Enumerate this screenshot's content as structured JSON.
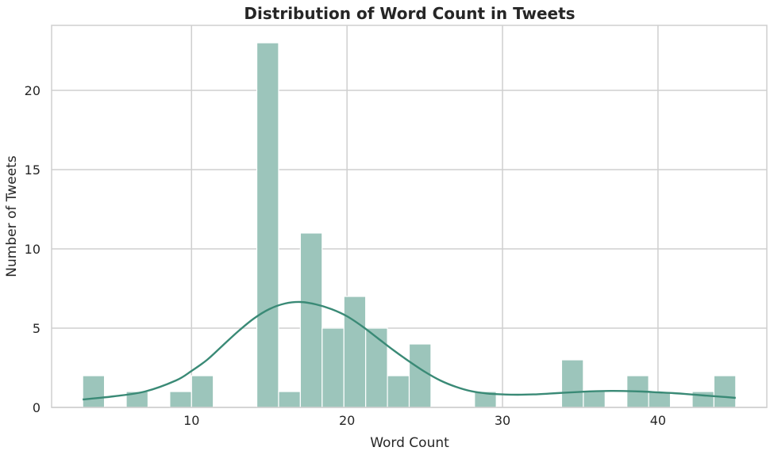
{
  "chart_data": {
    "type": "bar",
    "title": "Distribution of Word Count in Tweets",
    "xlabel": "Word Count",
    "ylabel": "Number of Tweets",
    "xlim": [
      1.0,
      47.0
    ],
    "ylim": [
      0,
      24.1
    ],
    "xticks": [
      10,
      20,
      30,
      40
    ],
    "yticks": [
      0,
      5,
      10,
      15,
      20
    ],
    "grid": true,
    "bin_width": 1.4,
    "bins": [
      {
        "x0": 3.0,
        "count": 2
      },
      {
        "x0": 5.8,
        "count": 1
      },
      {
        "x0": 8.6,
        "count": 1
      },
      {
        "x0": 10.0,
        "count": 2
      },
      {
        "x0": 14.2,
        "count": 23
      },
      {
        "x0": 15.6,
        "count": 1
      },
      {
        "x0": 17.0,
        "count": 11
      },
      {
        "x0": 18.4,
        "count": 5
      },
      {
        "x0": 19.8,
        "count": 7
      },
      {
        "x0": 21.2,
        "count": 5
      },
      {
        "x0": 22.6,
        "count": 2
      },
      {
        "x0": 24.0,
        "count": 4
      },
      {
        "x0": 28.2,
        "count": 1
      },
      {
        "x0": 33.8,
        "count": 3
      },
      {
        "x0": 35.2,
        "count": 1
      },
      {
        "x0": 38.0,
        "count": 2
      },
      {
        "x0": 39.4,
        "count": 1
      },
      {
        "x0": 42.2,
        "count": 1
      },
      {
        "x0": 43.6,
        "count": 2
      }
    ],
    "kde": {
      "x": [
        3,
        5,
        7,
        9,
        10,
        11,
        12,
        13,
        14,
        15,
        16,
        17,
        18,
        19,
        20,
        21,
        22,
        23,
        24,
        25,
        26,
        27,
        28,
        29,
        30,
        31,
        32,
        33,
        34,
        35,
        36,
        37,
        38,
        39,
        40,
        41,
        42,
        43,
        44,
        45
      ],
      "y": [
        0.5,
        0.7,
        1.0,
        1.7,
        2.3,
        3.0,
        3.9,
        4.8,
        5.6,
        6.2,
        6.55,
        6.65,
        6.5,
        6.2,
        5.75,
        5.1,
        4.35,
        3.6,
        2.9,
        2.25,
        1.7,
        1.3,
        1.02,
        0.88,
        0.82,
        0.8,
        0.82,
        0.87,
        0.93,
        0.98,
        1.02,
        1.04,
        1.03,
        1.0,
        0.95,
        0.9,
        0.83,
        0.75,
        0.68,
        0.6
      ]
    },
    "colors": {
      "bar_fill": "#9cc5bb",
      "bar_stroke": "#ffffff",
      "kde_line": "#3a8a76",
      "grid": "#cfcfcf",
      "spine": "#cfcfcf"
    }
  }
}
